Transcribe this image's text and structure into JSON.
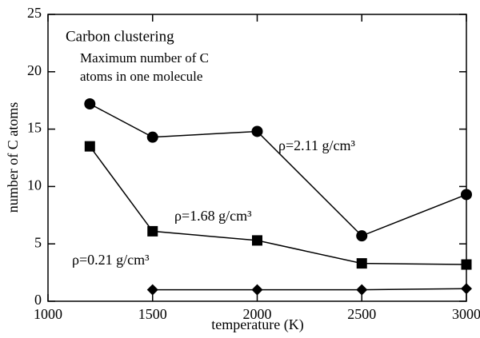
{
  "chart_data": {
    "type": "line",
    "x": [
      1200,
      1500,
      2000,
      2500,
      3000
    ],
    "series": [
      {
        "name": "ρ=2.11 g/cm³",
        "color": "#000000",
        "marker": "circle",
        "values": [
          17.2,
          14.3,
          14.8,
          5.7,
          9.3
        ]
      },
      {
        "name": "ρ=1.68 g/cm³",
        "color": "#000000",
        "marker": "square",
        "values": [
          13.5,
          6.1,
          5.3,
          3.3,
          3.2
        ]
      },
      {
        "name": "ρ=0.21 g/cm³",
        "color": "#000000",
        "marker": "diamond",
        "values": [
          null,
          1.0,
          1.0,
          1.0,
          1.1
        ]
      }
    ],
    "annotations": [
      "Carbon clustering",
      "Maximum number of C",
      "atoms in one molecule"
    ],
    "xlabel": "temperature (K)",
    "ylabel": "number of C atoms",
    "xlim": [
      1000,
      3000
    ],
    "ylim": [
      0,
      25
    ],
    "xticks": [
      1000,
      1500,
      2000,
      2500,
      3000
    ],
    "yticks": [
      0,
      5,
      10,
      15,
      20,
      25
    ]
  }
}
